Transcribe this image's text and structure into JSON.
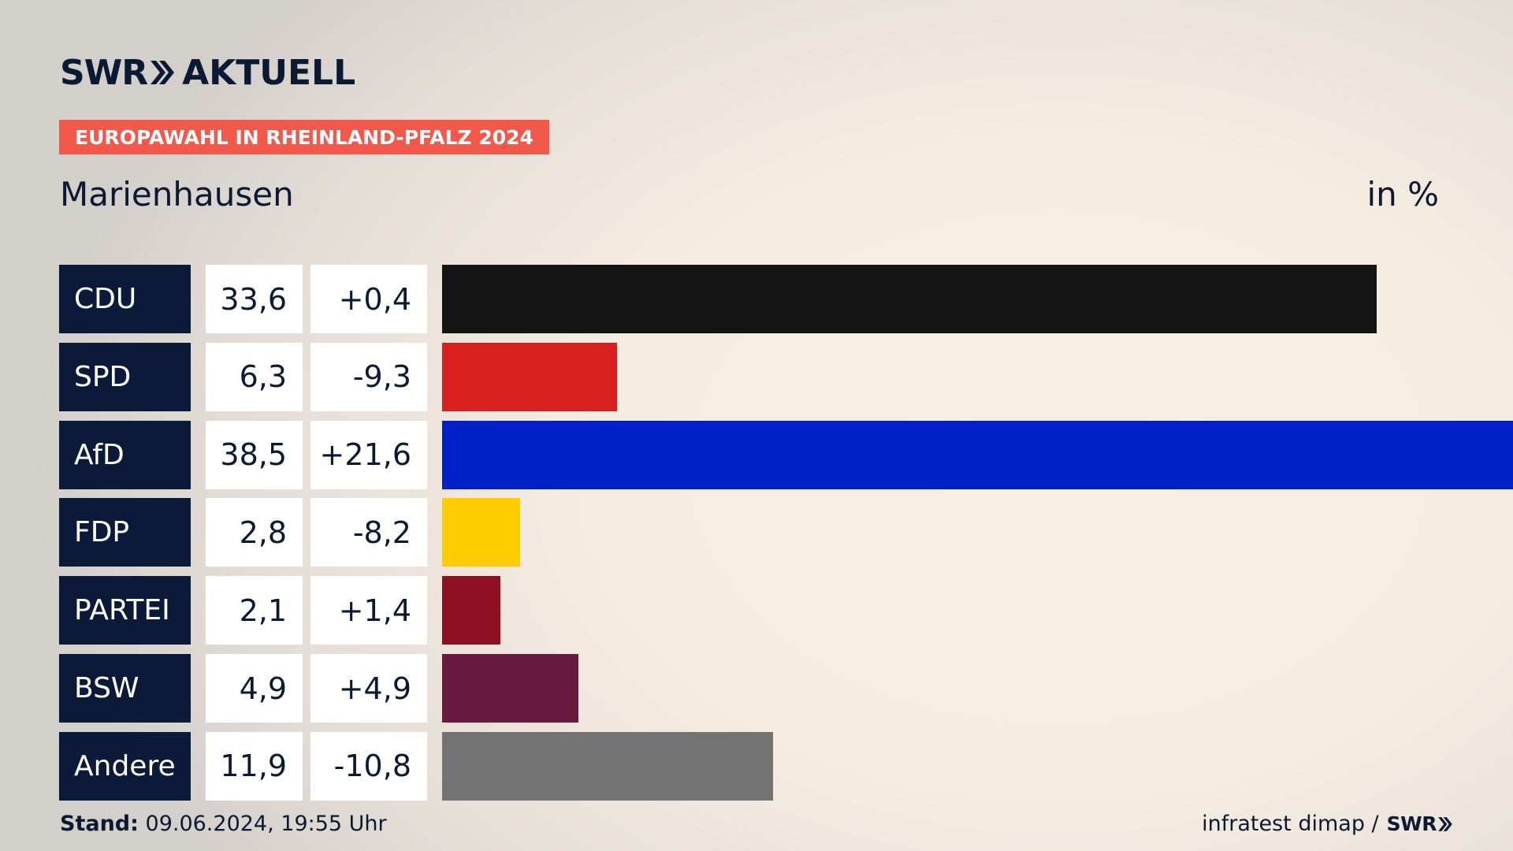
{
  "brand": {
    "swr": "SWR",
    "aktuell": "AKTUELL"
  },
  "badge": "EUROPAWAHL IN RHEINLAND-PFALZ 2024",
  "location": "Marienhausen",
  "unit": "in %",
  "chart_data": {
    "type": "bar",
    "orientation": "horizontal",
    "categories": [
      "CDU",
      "SPD",
      "AfD",
      "FDP",
      "PARTEI",
      "BSW",
      "Andere"
    ],
    "values": [
      33.6,
      6.3,
      38.5,
      2.8,
      2.1,
      4.9,
      11.9
    ],
    "value_labels": [
      "33,6",
      "6,3",
      "38,5",
      "2,8",
      "2,1",
      "4,9",
      "11,9"
    ],
    "changes": [
      0.4,
      -9.3,
      21.6,
      -8.2,
      1.4,
      4.9,
      -10.8
    ],
    "change_labels": [
      "+0,4",
      "-9,3",
      "+21,6",
      "-8,2",
      "+1,4",
      "+4,9",
      "-10,8"
    ],
    "colors": [
      "#141414",
      "#d8211f",
      "#0021c8",
      "#ffcc00",
      "#8e1022",
      "#671a3e",
      "#737373"
    ],
    "xlim": [
      0,
      38.5
    ]
  },
  "footer": {
    "stand_label": "Stand:",
    "stand_value": "09.06.2024, 19:55 Uhr",
    "source": "infratest dimap /",
    "source_brand": "SWR"
  }
}
